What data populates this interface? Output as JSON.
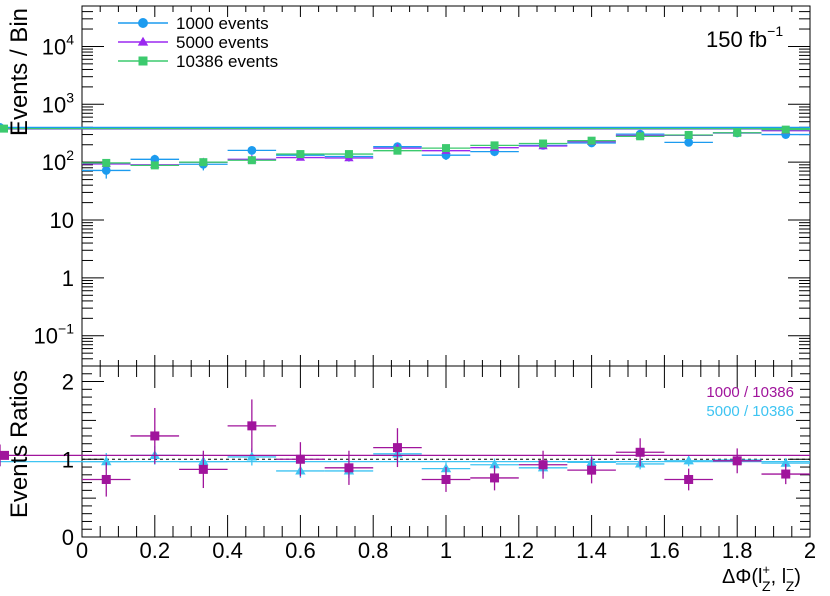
{
  "chart_data": [
    {
      "type": "scatter",
      "yscale": "log",
      "xlim": [
        0,
        2
      ],
      "ylim": [
        0.03,
        50000
      ],
      "ylabel": "Events / Bin",
      "lumi_label": "150 fb",
      "lumi_exp": "−1",
      "y_ticks": [
        {
          "value": 0.1,
          "label": "10",
          "exp": "−1"
        },
        {
          "value": 1,
          "label": "1",
          "exp": ""
        },
        {
          "value": 10,
          "label": "10",
          "exp": ""
        },
        {
          "value": 100,
          "label": "10",
          "exp": "2"
        },
        {
          "value": 1000,
          "label": "10",
          "exp": "3"
        },
        {
          "value": 10000,
          "label": "10",
          "exp": "4"
        }
      ],
      "bin_edges": [
        0,
        0.1333,
        0.2667,
        0.4,
        0.5333,
        0.6667,
        0.8,
        0.9333,
        1.0667,
        1.2,
        1.3333,
        1.4667,
        1.6,
        1.7333,
        1.8667,
        2.0
      ],
      "series": [
        {
          "name": "1000 events",
          "marker": "circle",
          "color": "#1c9bef",
          "values": [
            72,
            112,
            92,
            160,
            132,
            125,
            185,
            132,
            152,
            195,
            215,
            305,
            220,
            320,
            300,
            398
          ],
          "errors": [
            20,
            22,
            20,
            26,
            23,
            23,
            28,
            23,
            25,
            28,
            30,
            36,
            30,
            37,
            36,
            42
          ]
        },
        {
          "name": "5000 events",
          "marker": "triangle",
          "color": "#9b28f0",
          "values": [
            93,
            90,
            100,
            112,
            120,
            118,
            175,
            158,
            178,
            190,
            225,
            290,
            290,
            320,
            350,
            375
          ],
          "errors": [
            9,
            9,
            10,
            10,
            11,
            11,
            13,
            12,
            13,
            14,
            15,
            17,
            17,
            18,
            19,
            19
          ]
        },
        {
          "name": "10386 events",
          "marker": "square",
          "color": "#3cca6e",
          "values": [
            97,
            88,
            100,
            108,
            138,
            138,
            158,
            175,
            195,
            210,
            235,
            280,
            295,
            322,
            365,
            380
          ],
          "errors": [
            6,
            6,
            6,
            7,
            8,
            8,
            8,
            9,
            9,
            10,
            11,
            12,
            12,
            13,
            14,
            14
          ]
        }
      ]
    },
    {
      "type": "scatter",
      "xlim": [
        0,
        2
      ],
      "ylim": [
        0,
        2.2
      ],
      "xlabel": "ΔΦ(l",
      "xlabel_sup1": "+",
      "xlabel_sub1": "Z",
      "xlabel_mid": ", l",
      "xlabel_sup2": "−",
      "xlabel_sub2": "Z",
      "xlabel_end": ")",
      "ylabel": "Events Ratios",
      "x_ticks": [
        "0",
        "0.2",
        "0.4",
        "0.6",
        "0.8",
        "1",
        "1.2",
        "1.4",
        "1.6",
        "1.8",
        "2"
      ],
      "y_ticks": [
        "0",
        "1",
        "2"
      ],
      "reference_line": 1,
      "series": [
        {
          "name": "1000 / 10386",
          "marker": "square",
          "color": "#a0149c",
          "values": [
            0.74,
            1.3,
            0.87,
            1.43,
            1.0,
            0.89,
            1.15,
            0.74,
            0.76,
            0.93,
            0.86,
            1.09,
            0.74,
            0.98,
            0.81,
            1.05
          ],
          "errors": [
            0.22,
            0.36,
            0.24,
            0.34,
            0.22,
            0.22,
            0.25,
            0.16,
            0.16,
            0.18,
            0.17,
            0.18,
            0.14,
            0.16,
            0.13,
            0.14
          ]
        },
        {
          "name": "5000 / 10386",
          "marker": "triangle",
          "color": "#3ec4f2",
          "values": [
            0.97,
            1.05,
            0.97,
            1.03,
            0.85,
            0.85,
            1.07,
            0.88,
            0.93,
            0.89,
            0.96,
            0.94,
            0.98,
            0.99,
            0.95,
            0.97
          ],
          "errors": [
            0.11,
            0.12,
            0.11,
            0.11,
            0.09,
            0.09,
            0.1,
            0.08,
            0.08,
            0.08,
            0.08,
            0.07,
            0.07,
            0.07,
            0.06,
            0.06
          ]
        }
      ]
    }
  ]
}
